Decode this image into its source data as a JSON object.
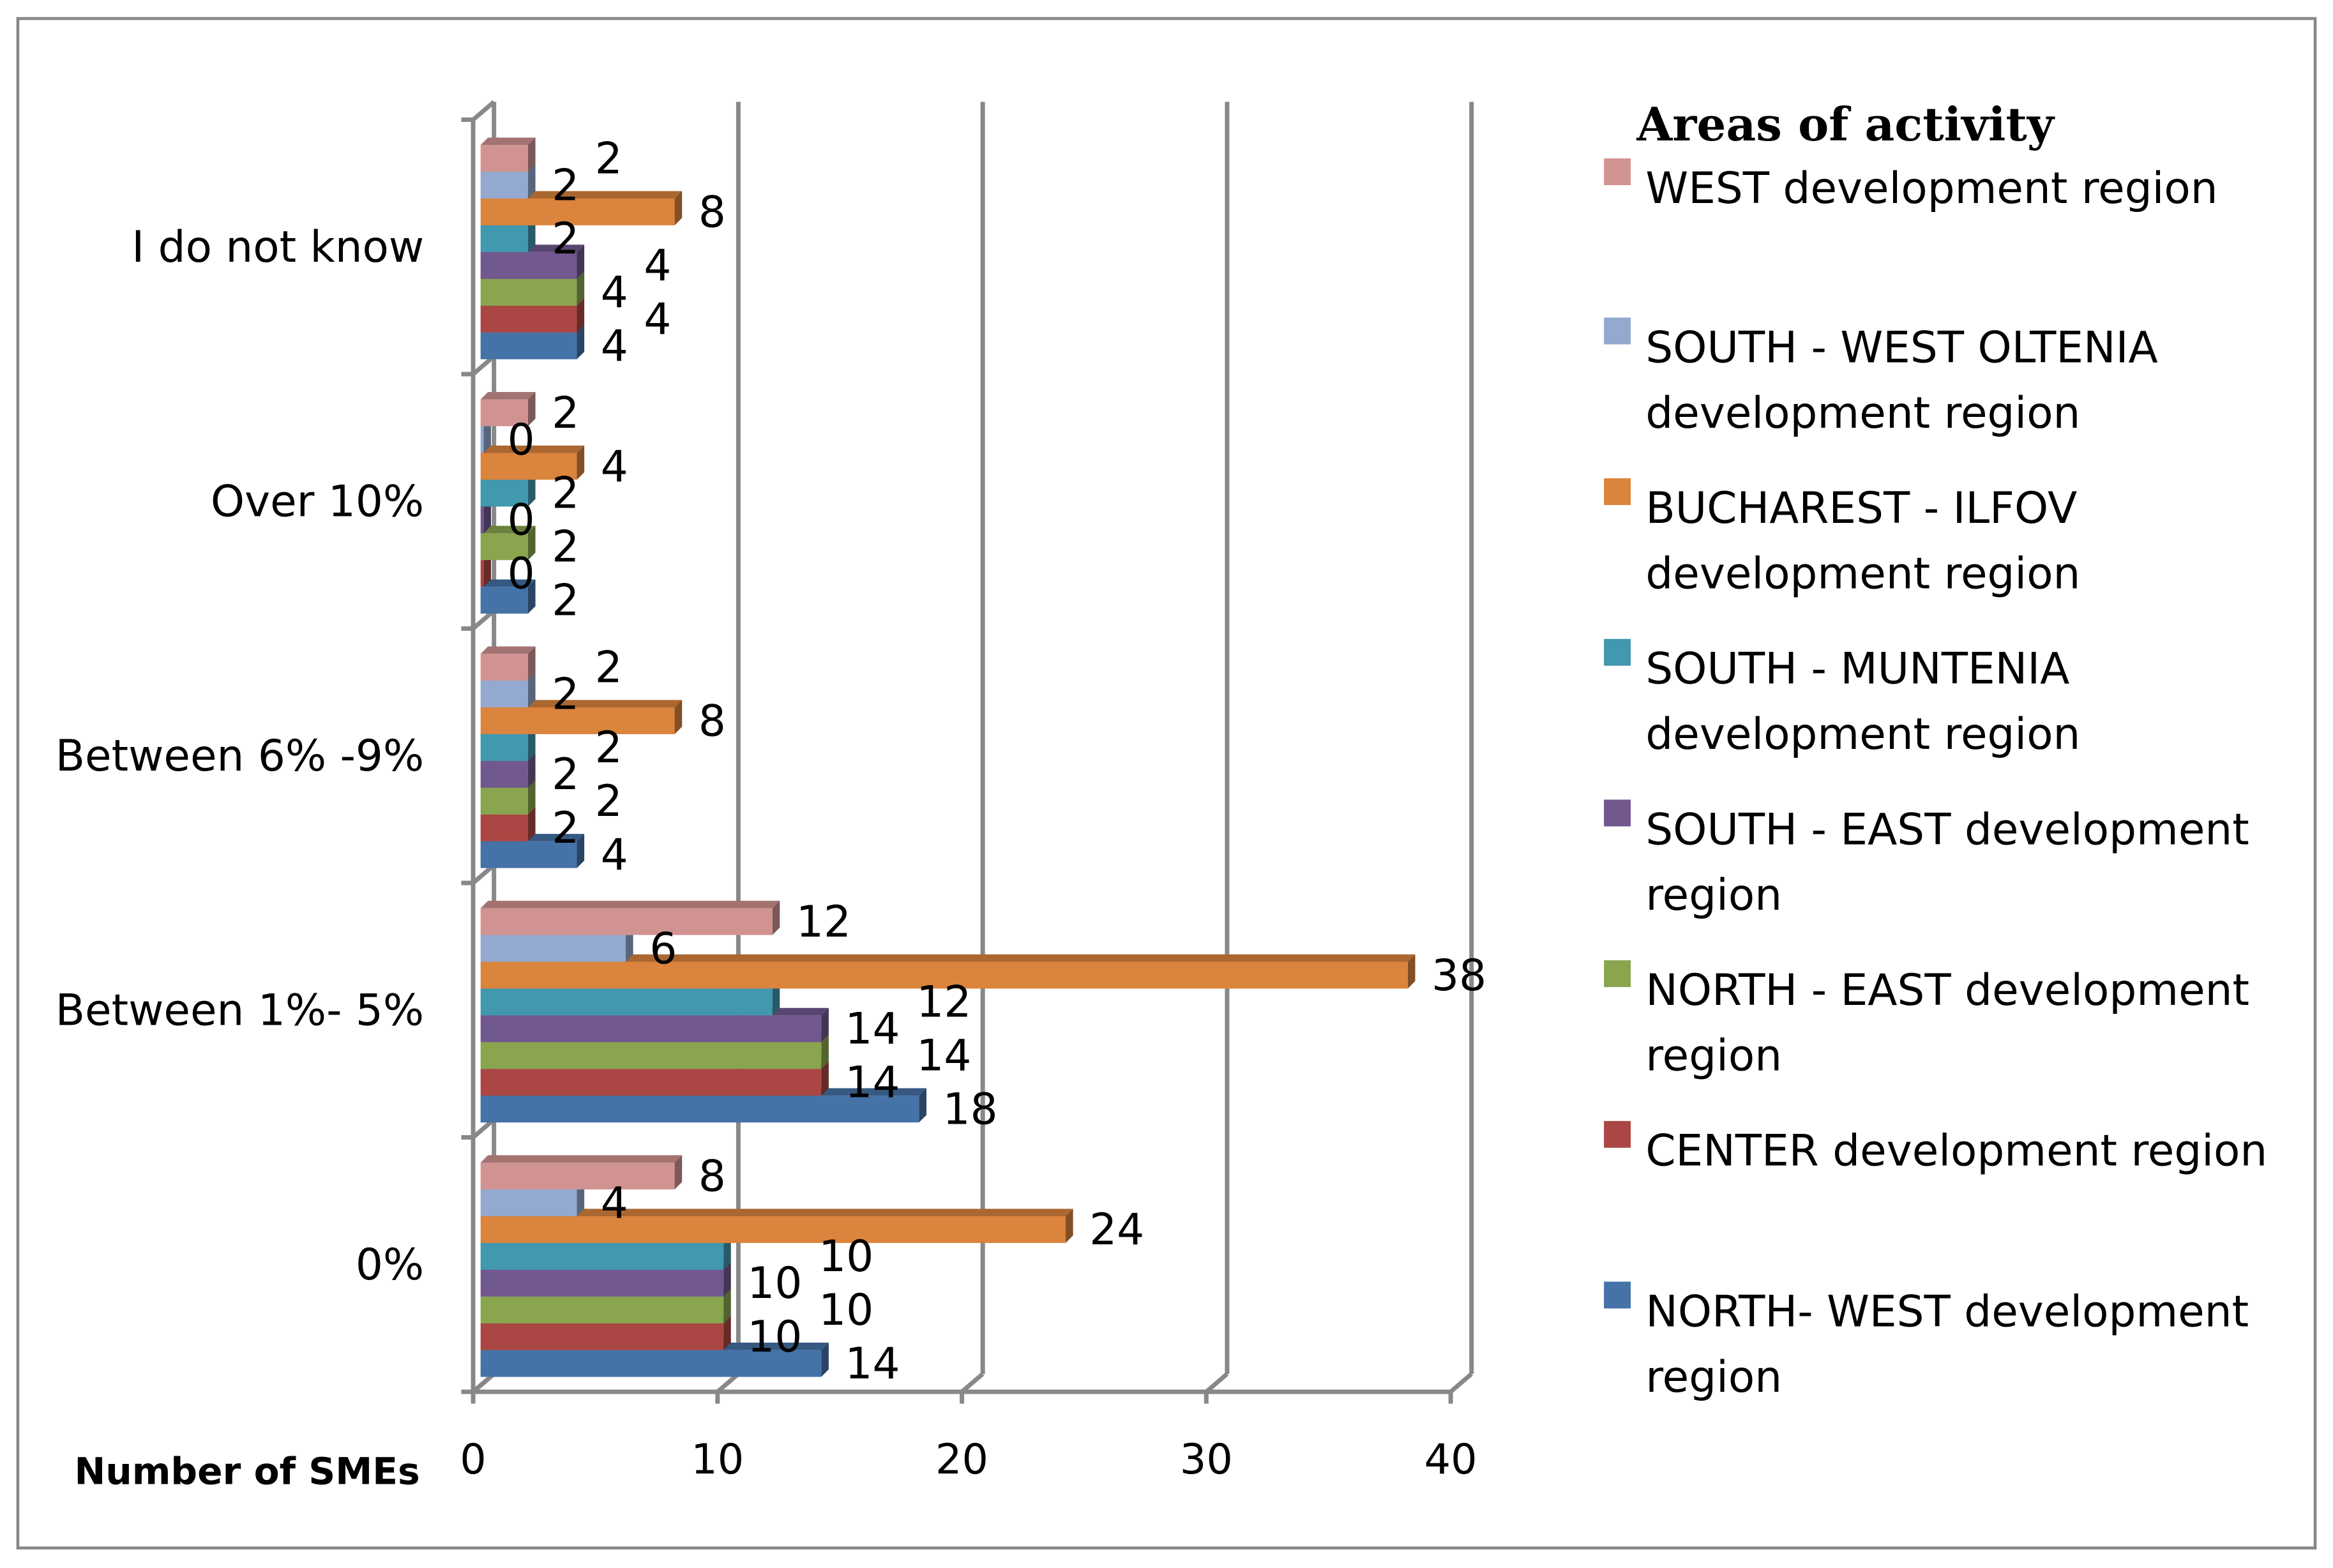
{
  "chart_data": {
    "type": "bar",
    "orientation": "horizontal",
    "style": "3d-clustered",
    "xlabel": "Number of SMEs",
    "xlim": [
      0,
      40
    ],
    "xticks": [
      0,
      10,
      20,
      30,
      40
    ],
    "grid": true,
    "legend_title": "Areas of activity",
    "legend_placement": "right",
    "categories": [
      "0%",
      "Between 1%- 5%",
      "Between 6% -9%",
      "Over 10%",
      "I do not know"
    ],
    "series": [
      {
        "name": "NORTH- WEST development region",
        "color": "#4572a7",
        "values": [
          14,
          18,
          4,
          2,
          4
        ]
      },
      {
        "name": "CENTER development region",
        "color": "#aa4643",
        "values": [
          10,
          14,
          2,
          0,
          4
        ]
      },
      {
        "name": "NORTH - EAST development region",
        "color": "#89a54e",
        "values": [
          10,
          14,
          2,
          2,
          4
        ]
      },
      {
        "name": "SOUTH - EAST development region",
        "color": "#71588f",
        "values": [
          10,
          14,
          2,
          0,
          4
        ]
      },
      {
        "name": "SOUTH - MUNTENIA development region",
        "color": "#4198af",
        "values": [
          10,
          12,
          2,
          2,
          2
        ]
      },
      {
        "name": "BUCHAREST - ILFOV development region",
        "color": "#db843d",
        "values": [
          24,
          38,
          8,
          4,
          8
        ]
      },
      {
        "name": "SOUTH - WEST OLTENIA development region",
        "color": "#93a9cf",
        "values": [
          4,
          6,
          2,
          0,
          2
        ]
      },
      {
        "name": "WEST development region",
        "color": "#d19392",
        "values": [
          8,
          12,
          2,
          2,
          2
        ]
      }
    ],
    "legend_lines": [
      [
        "WEST development region"
      ],
      [
        "SOUTH - WEST OLTENIA",
        "development region"
      ],
      [
        "BUCHAREST - ILFOV",
        "development region"
      ],
      [
        "SOUTH - MUNTENIA",
        "development region"
      ],
      [
        "SOUTH - EAST development",
        "region"
      ],
      [
        "NORTH - EAST development",
        "region"
      ],
      [
        "CENTER development region"
      ],
      [
        "NORTH- WEST development",
        "region"
      ]
    ]
  }
}
